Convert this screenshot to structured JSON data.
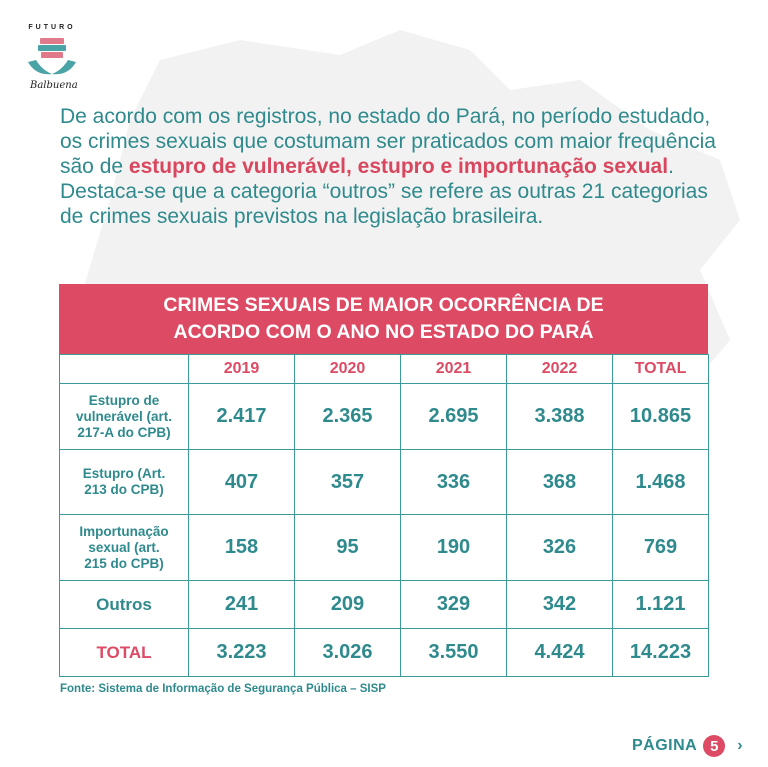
{
  "logo": {
    "arc_text": "FUTURO",
    "signature": "Balbuena"
  },
  "intro": {
    "part1": "De acordo com os registros, no estado do Pará, no período estudado, os crimes sexuais que costumam ser praticados com maior frequência são de ",
    "highlight": "estupro de vulnerável, estupro e importunação sexual",
    "part2": ". Destaca-se que a categoria “outros” se refere as outras 21 categorias de crimes sexuais previstos na legislação brasileira."
  },
  "table": {
    "title_line1": "CRIMES SEXUAIS DE MAIOR OCORRÊNCIA DE",
    "title_line2": "ACORDO COM O ANO NO ESTADO DO PARÁ",
    "headers": [
      "2019",
      "2020",
      "2021",
      "2022",
      "TOTAL"
    ],
    "rows": [
      {
        "label_lines": [
          "Estupro de",
          "vulnerável (art.",
          "217-A do CPB)"
        ],
        "values": [
          "2.417",
          "2.365",
          "2.695",
          "3.388",
          "10.865"
        ]
      },
      {
        "label_lines": [
          "Estupro (Art.",
          "213 do CPB)"
        ],
        "values": [
          "407",
          "357",
          "336",
          "368",
          "1.468"
        ]
      },
      {
        "label_lines": [
          "Importunação",
          "sexual (art.",
          "215 do CPB)"
        ],
        "values": [
          "158",
          "95",
          "190",
          "326",
          "769"
        ]
      },
      {
        "label_lines": [
          "Outros"
        ],
        "values": [
          "241",
          "209",
          "329",
          "342",
          "1.121"
        ]
      },
      {
        "label_lines": [
          "TOTAL"
        ],
        "values": [
          "3.223",
          "3.026",
          "3.550",
          "4.424",
          "14.223"
        ]
      }
    ]
  },
  "source": "Fonte: Sistema de Informação de Segurança Pública – SISP",
  "pagination": {
    "label": "PÁGINA",
    "number": "5",
    "next_glyph": "›"
  },
  "colors": {
    "teal": "#2f8a8d",
    "pink": "#dd4a64"
  }
}
